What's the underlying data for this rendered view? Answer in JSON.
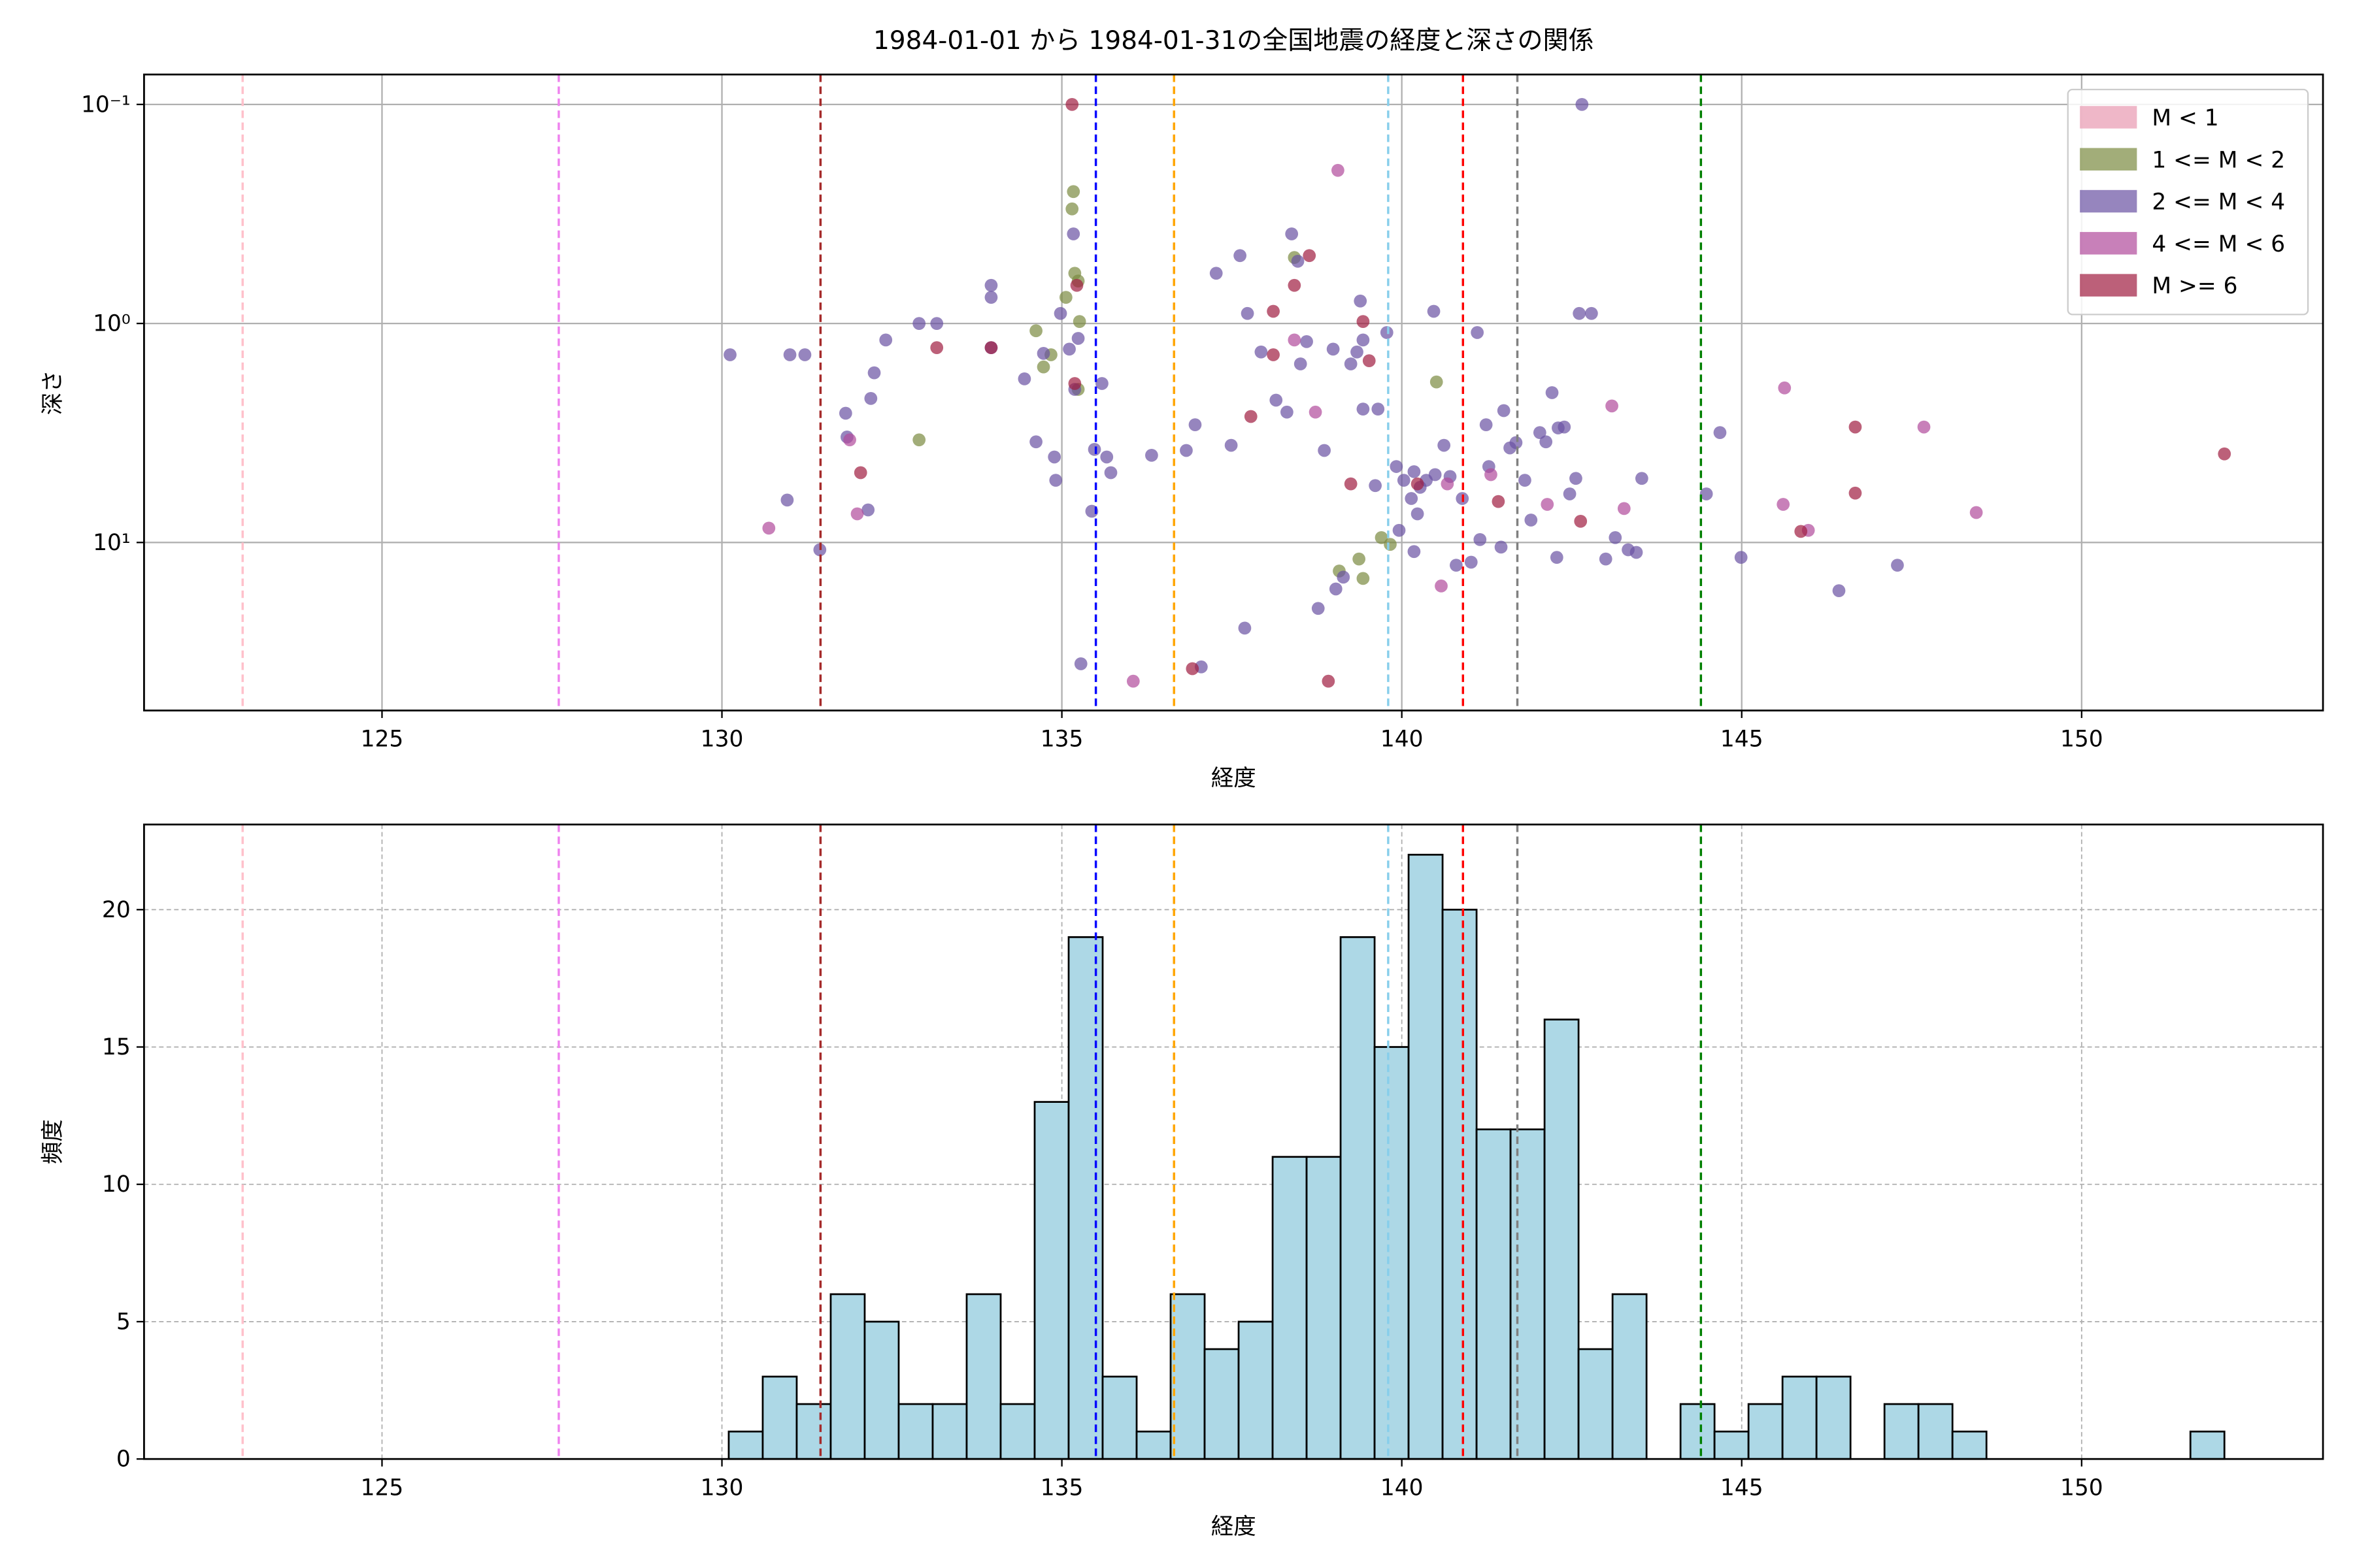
{
  "chart_data": [
    {
      "type": "scatter",
      "title": "1984-01-01 から 1984-01-31の全国地震の経度と深さの関係",
      "xlabel": "経度",
      "ylabel": "深さ",
      "xlim": [
        121.5,
        153.55
      ],
      "xticks": [
        125,
        130,
        135,
        140,
        145,
        150
      ],
      "ylim": [
        0.073,
        58.5
      ],
      "yscale": "log",
      "yinvert": true,
      "yticks": [
        {
          "value": 0.1,
          "label": "10⁻¹"
        },
        {
          "value": 1,
          "label": "10⁰"
        },
        {
          "value": 10,
          "label": "10¹"
        }
      ],
      "grid": true,
      "grid_linestyle": "solid",
      "legend": "upper right",
      "vlines": [
        {
          "x": 122.95,
          "color": "#ffc0cb"
        },
        {
          "x": 127.6,
          "color": "#ee82ee"
        },
        {
          "x": 131.45,
          "color": "#a52a2a"
        },
        {
          "x": 135.5,
          "color": "#0000ff"
        },
        {
          "x": 136.65,
          "color": "#ffa500"
        },
        {
          "x": 139.8,
          "color": "#87ceeb"
        },
        {
          "x": 140.9,
          "color": "#ff0000"
        },
        {
          "x": 141.7,
          "color": "#808080"
        },
        {
          "x": 144.4,
          "color": "#008000"
        }
      ],
      "series": [
        {
          "name": "M < 1",
          "color": "#e899b0",
          "x": [],
          "values": []
        },
        {
          "name": "1 <= M < 2",
          "color": "#7a8a40",
          "x": [
            132.9,
            134.62,
            134.73,
            134.84,
            135.06,
            135.15,
            135.19,
            135.24,
            135.26,
            135.24,
            138.42,
            139.08,
            139.37,
            139.43,
            139.7,
            139.83,
            140.51,
            135.17
          ],
          "values": [
            3.4,
            1.08,
            1.58,
            1.39,
            0.76,
            0.3,
            0.59,
            0.64,
            0.98,
            2.0,
            0.5,
            13.5,
            11.9,
            14.6,
            9.5,
            10.2,
            1.85,
            0.25
          ]
        },
        {
          "name": "2 <= M < 4",
          "color": "#6a51a3",
          "x": [
            130.12,
            131.0,
            131.22,
            130.96,
            131.44,
            131.82,
            131.84,
            132.15,
            132.19,
            132.24,
            132.41,
            132.9,
            133.16,
            133.96,
            133.96,
            133.96,
            134.45,
            134.62,
            134.73,
            134.89,
            134.91,
            134.98,
            135.11,
            135.17,
            135.19,
            135.24,
            135.28,
            135.44,
            135.48,
            135.59,
            135.66,
            135.72,
            136.32,
            136.83,
            137.05,
            136.96,
            137.27,
            137.49,
            137.62,
            137.73,
            137.93,
            138.15,
            137.69,
            138.31,
            138.38,
            138.47,
            138.51,
            138.6,
            138.77,
            138.86,
            139.03,
            138.99,
            139.14,
            139.25,
            139.34,
            139.39,
            139.43,
            139.43,
            139.61,
            139.65,
            139.78,
            139.92,
            139.96,
            140.03,
            140.14,
            140.18,
            140.18,
            140.23,
            140.27,
            140.36,
            140.47,
            140.49,
            140.62,
            140.71,
            140.8,
            140.89,
            141.02,
            141.11,
            141.15,
            141.24,
            141.28,
            141.46,
            141.5,
            141.59,
            141.68,
            141.81,
            141.9,
            142.03,
            142.12,
            142.21,
            142.3,
            142.28,
            142.39,
            142.47,
            142.56,
            142.61,
            142.79,
            142.65,
            143.0,
            143.14,
            143.45,
            143.53,
            144.68,
            144.99,
            146.43,
            147.29,
            144.48,
            143.33
          ],
          "values": [
            1.39,
            1.39,
            1.39,
            6.4,
            10.8,
            2.57,
            3.3,
            7.1,
            2.2,
            1.68,
            1.19,
            1.0,
            1.0,
            0.67,
            0.76,
            1.29,
            1.79,
            3.47,
            1.37,
            4.07,
            5.2,
            0.9,
            1.31,
            0.39,
            2.0,
            1.17,
            35.8,
            7.2,
            3.76,
            1.88,
            4.07,
            4.8,
            4.0,
            3.8,
            37,
            2.9,
            0.59,
            3.6,
            0.49,
            0.9,
            1.35,
            2.24,
            24.6,
            2.54,
            0.39,
            0.52,
            1.53,
            1.21,
            20,
            3.8,
            16.3,
            1.31,
            14.4,
            1.53,
            1.35,
            0.79,
            1.19,
            2.46,
            5.5,
            2.46,
            1.1,
            4.5,
            8.8,
            5.2,
            6.3,
            4.75,
            11,
            7.4,
            5.6,
            5.2,
            0.88,
            4.9,
            3.6,
            5.0,
            12.7,
            6.3,
            12.3,
            1.1,
            9.7,
            2.9,
            4.5,
            10.5,
            2.5,
            3.7,
            3.5,
            5.2,
            7.9,
            3.15,
            3.47,
            2.07,
            3.0,
            11.7,
            2.97,
            6.0,
            5.1,
            0.9,
            0.9,
            0.1,
            11.9,
            9.5,
            11.1,
            5.1,
            3.15,
            11.7,
            16.6,
            12.7,
            6.0,
            10.8
          ]
        },
        {
          "name": "4 <= M < 6",
          "color": "#b04a9b",
          "x": [
            130.69,
            131.88,
            131.99,
            136.05,
            138.42,
            138.73,
            139.06,
            140.58,
            141.31,
            142.14,
            143.09,
            143.27,
            145.63,
            145.61,
            145.98,
            147.68,
            148.45,
            140.67
          ],
          "values": [
            8.6,
            3.4,
            7.4,
            43,
            1.19,
            2.54,
            0.2,
            15.8,
            4.9,
            6.7,
            2.38,
            7.0,
            1.97,
            6.7,
            8.8,
            2.97,
            7.3,
            5.4
          ]
        },
        {
          "name": "M >= 6",
          "color": "#a01c40",
          "x": [
            132.04,
            133.16,
            133.96,
            135.15,
            135.19,
            135.22,
            136.92,
            137.78,
            138.11,
            138.11,
            138.42,
            138.64,
            138.92,
            139.25,
            139.43,
            139.52,
            140.23,
            141.42,
            142.63,
            145.87,
            146.67,
            146.67,
            152.1
          ],
          "values": [
            4.8,
            1.29,
            1.29,
            0.1,
            1.88,
            0.67,
            37.7,
            2.66,
            0.88,
            1.39,
            0.67,
            0.49,
            43,
            5.4,
            0.98,
            1.48,
            5.4,
            6.5,
            8.0,
            8.9,
            2.97,
            5.95,
            3.94
          ]
        }
      ]
    },
    {
      "type": "histogram",
      "xlabel": "経度",
      "ylabel": "頻度",
      "xlim": [
        121.5,
        153.55
      ],
      "xticks": [
        125,
        130,
        135,
        140,
        145,
        150
      ],
      "ylim": [
        0,
        23.1
      ],
      "yticks": [
        0,
        5,
        10,
        15,
        20
      ],
      "grid": true,
      "grid_linestyle": "dashed",
      "color": "#add8e6",
      "edgecolor": "#000000",
      "bins": [
        130.1,
        130.6,
        131.1,
        131.6,
        132.1,
        132.6,
        133.1,
        133.6,
        134.1,
        134.6,
        135.1,
        135.6,
        136.1,
        136.6,
        137.1,
        137.6,
        138.1,
        138.6,
        139.1,
        139.6,
        140.1,
        140.6,
        141.1,
        141.6,
        142.1,
        142.6,
        143.1,
        143.6,
        144.1,
        144.6,
        145.1,
        145.6,
        146.1,
        146.6,
        147.1,
        147.6,
        148.1,
        148.6,
        149.1,
        149.6,
        150.1,
        150.6,
        151.1,
        151.6,
        152.1
      ],
      "values": [
        1,
        3,
        2,
        6,
        5,
        2,
        2,
        6,
        2,
        13,
        19,
        3,
        1,
        6,
        4,
        5,
        11,
        11,
        19,
        15,
        22,
        20,
        12,
        12,
        16,
        4,
        6,
        0,
        2,
        1,
        2,
        3,
        3,
        0,
        2,
        2,
        1,
        0,
        0,
        0,
        0,
        0,
        0,
        1
      ],
      "vlines": [
        {
          "x": 122.95,
          "color": "#ffc0cb"
        },
        {
          "x": 127.6,
          "color": "#ee82ee"
        },
        {
          "x": 131.45,
          "color": "#a52a2a"
        },
        {
          "x": 135.5,
          "color": "#0000ff"
        },
        {
          "x": 136.65,
          "color": "#ffa500"
        },
        {
          "x": 139.8,
          "color": "#87ceeb"
        },
        {
          "x": 140.9,
          "color": "#ff0000"
        },
        {
          "x": 141.7,
          "color": "#808080"
        },
        {
          "x": 144.4,
          "color": "#008000"
        }
      ]
    }
  ]
}
